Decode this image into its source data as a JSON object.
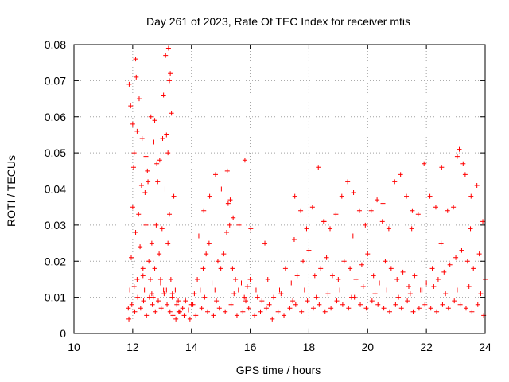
{
  "chart_data": {
    "type": "scatter",
    "title": "Day 261 of 2023, Rate Of TEC Index for receiver mtis",
    "xlabel": "GPS time / hours",
    "ylabel": "ROTI / TECUs",
    "xlim": [
      10,
      24
    ],
    "ylim": [
      0,
      0.08
    ],
    "x_ticks": [
      "10",
      "12",
      "14",
      "16",
      "18",
      "20",
      "22",
      "24"
    ],
    "y_ticks": [
      "0",
      "0.01",
      "0.02",
      "0.03",
      "0.04",
      "0.05",
      "0.06",
      "0.07",
      "0.08"
    ],
    "grid": true,
    "marker": "+",
    "series": [
      {
        "name": "ROTI",
        "color": "#ff0000",
        "x": [
          11.85,
          11.9,
          11.95,
          12.0,
          12.05,
          12.1,
          12.15,
          12.2,
          12.25,
          12.3,
          12.35,
          12.4,
          12.45,
          12.5,
          12.55,
          12.6,
          12.65,
          12.7,
          12.75,
          12.8,
          12.85,
          12.9,
          12.95,
          13.0,
          13.05,
          13.1,
          13.15,
          13.2,
          13.25,
          13.3,
          13.35,
          13.4,
          13.45,
          13.5,
          13.6,
          13.7,
          13.8,
          13.9,
          14.0,
          14.1,
          14.2,
          14.3,
          14.4,
          14.5,
          14.6,
          14.7,
          14.8,
          14.9,
          15.0,
          15.1,
          15.2,
          15.3,
          15.4,
          15.5,
          15.6,
          15.7,
          15.8,
          15.9,
          16.0,
          16.2,
          16.4,
          16.6,
          16.8,
          17.0,
          17.2,
          17.4,
          17.6,
          17.8,
          18.0,
          18.2,
          18.4,
          18.6,
          18.8,
          19.0,
          19.2,
          19.4,
          19.6,
          19.8,
          20.0,
          20.2,
          20.4,
          20.6,
          20.8,
          21.0,
          21.2,
          21.4,
          21.6,
          21.8,
          22.0,
          22.2,
          22.4,
          22.6,
          22.8,
          23.0,
          23.2,
          23.4,
          23.6,
          23.8,
          24.0,
          11.87,
          11.97,
          12.07,
          12.17,
          12.27,
          12.37,
          12.47,
          12.57,
          12.67,
          12.77,
          12.87,
          12.97,
          13.07,
          13.17,
          13.27,
          13.37,
          13.47,
          13.57,
          13.75,
          13.95,
          14.15,
          14.35,
          14.55,
          14.75,
          14.95,
          15.15,
          15.35,
          15.55,
          15.75,
          15.95,
          16.15,
          16.35,
          16.55,
          16.75,
          16.95,
          17.15,
          17.35,
          17.55,
          17.75,
          17.95,
          18.15,
          18.35,
          18.55,
          18.75,
          18.95,
          19.15,
          19.35,
          19.55,
          19.75,
          19.95,
          20.15,
          20.35,
          20.55,
          20.75,
          20.95,
          21.15,
          21.35,
          21.55,
          21.75,
          21.95,
          22.15,
          22.35,
          22.55,
          22.75,
          22.95,
          23.15,
          23.35,
          23.55,
          23.75,
          23.95,
          11.88,
          11.93,
          12.0,
          12.03,
          12.1,
          12.12,
          12.22,
          12.32,
          12.42,
          12.52,
          12.62,
          12.72,
          12.82,
          12.92,
          13.02,
          13.12,
          13.2,
          13.22,
          13.28,
          13.32,
          14.42,
          14.62,
          14.82,
          15.02,
          15.22,
          15.32,
          15.42,
          15.62,
          15.82,
          16.02,
          17.52,
          17.72,
          17.92,
          18.12,
          18.32,
          18.52,
          18.72,
          18.92,
          19.12,
          19.32,
          19.52,
          19.72,
          19.92,
          20.12,
          20.32,
          20.52,
          20.72,
          20.92,
          21.12,
          21.32,
          21.52,
          21.72,
          21.92,
          22.12,
          22.32,
          22.52,
          22.72,
          22.92,
          23.12,
          23.32,
          23.52,
          23.72,
          23.92,
          12.15,
          12.45,
          12.75,
          13.05,
          13.25,
          14.25,
          15.25,
          16.5,
          17.5,
          18.5,
          19.5,
          20.5,
          21.5,
          22.5,
          23.5,
          23.05,
          23.25,
          12.05,
          12.35,
          12.65,
          12.95,
          13.15,
          13.35,
          13.55,
          14.05,
          14.45,
          14.85,
          15.45,
          15.85,
          16.25,
          16.65,
          17.05,
          17.45,
          17.85,
          18.25,
          18.65,
          19.05,
          19.45,
          19.85,
          20.25,
          20.65,
          21.05,
          21.45,
          21.85,
          22.25,
          22.65,
          23.05,
          23.45,
          23.85
        ],
        "y": [
          0.007,
          0.012,
          0.021,
          0.035,
          0.05,
          0.028,
          0.015,
          0.033,
          0.024,
          0.041,
          0.018,
          0.012,
          0.03,
          0.045,
          0.02,
          0.015,
          0.025,
          0.01,
          0.018,
          0.03,
          0.042,
          0.022,
          0.015,
          0.029,
          0.012,
          0.04,
          0.055,
          0.025,
          0.033,
          0.015,
          0.011,
          0.038,
          0.012,
          0.008,
          0.006,
          0.007,
          0.009,
          0.0065,
          0.008,
          0.011,
          0.015,
          0.012,
          0.018,
          0.022,
          0.025,
          0.014,
          0.012,
          0.02,
          0.018,
          0.022,
          0.028,
          0.03,
          0.018,
          0.015,
          0.012,
          0.014,
          0.01,
          0.013,
          0.015,
          0.012,
          0.009,
          0.015,
          0.01,
          0.012,
          0.018,
          0.014,
          0.016,
          0.02,
          0.023,
          0.016,
          0.018,
          0.021,
          0.016,
          0.015,
          0.02,
          0.018,
          0.015,
          0.019,
          0.022,
          0.016,
          0.014,
          0.02,
          0.018,
          0.015,
          0.017,
          0.013,
          0.016,
          0.012,
          0.014,
          0.018,
          0.015,
          0.017,
          0.019,
          0.021,
          0.023,
          0.02,
          0.018,
          0.022,
          0.015,
          0.004,
          0.008,
          0.006,
          0.01,
          0.007,
          0.009,
          0.005,
          0.01,
          0.008,
          0.006,
          0.009,
          0.007,
          0.011,
          0.008,
          0.006,
          0.005,
          0.004,
          0.006,
          0.005,
          0.004,
          0.005,
          0.007,
          0.006,
          0.005,
          0.007,
          0.006,
          0.008,
          0.005,
          0.006,
          0.007,
          0.005,
          0.006,
          0.007,
          0.004,
          0.006,
          0.005,
          0.007,
          0.008,
          0.006,
          0.009,
          0.007,
          0.008,
          0.006,
          0.007,
          0.009,
          0.008,
          0.007,
          0.01,
          0.008,
          0.007,
          0.009,
          0.008,
          0.007,
          0.006,
          0.008,
          0.007,
          0.009,
          0.006,
          0.007,
          0.008,
          0.007,
          0.006,
          0.008,
          0.007,
          0.009,
          0.008,
          0.007,
          0.006,
          0.008,
          0.005,
          0.069,
          0.063,
          0.058,
          0.046,
          0.076,
          0.071,
          0.065,
          0.054,
          0.039,
          0.042,
          0.06,
          0.053,
          0.047,
          0.048,
          0.054,
          0.077,
          0.05,
          0.079,
          0.072,
          0.061,
          0.034,
          0.038,
          0.044,
          0.04,
          0.045,
          0.037,
          0.032,
          0.03,
          0.048,
          0.029,
          0.038,
          0.034,
          0.029,
          0.035,
          0.046,
          0.031,
          0.029,
          0.033,
          0.038,
          0.042,
          0.039,
          0.034,
          0.03,
          0.034,
          0.037,
          0.036,
          0.029,
          0.042,
          0.044,
          0.038,
          0.034,
          0.033,
          0.047,
          0.038,
          0.035,
          0.046,
          0.034,
          0.035,
          0.051,
          0.044,
          0.038,
          0.041,
          0.031,
          0.056,
          0.049,
          0.059,
          0.066,
          0.07,
          0.027,
          0.036,
          0.025,
          0.026,
          0.031,
          0.027,
          0.031,
          0.029,
          0.025,
          0.029,
          0.049,
          0.047,
          0.013,
          0.016,
          0.011,
          0.014,
          0.012,
          0.01,
          0.009,
          0.008,
          0.01,
          0.009,
          0.011,
          0.009,
          0.01,
          0.008,
          0.011,
          0.009,
          0.012,
          0.01,
          0.011,
          0.012,
          0.01,
          0.013,
          0.011,
          0.012,
          0.01,
          0.011,
          0.012,
          0.013,
          0.011,
          0.012,
          0.013,
          0.011
        ]
      }
    ]
  }
}
